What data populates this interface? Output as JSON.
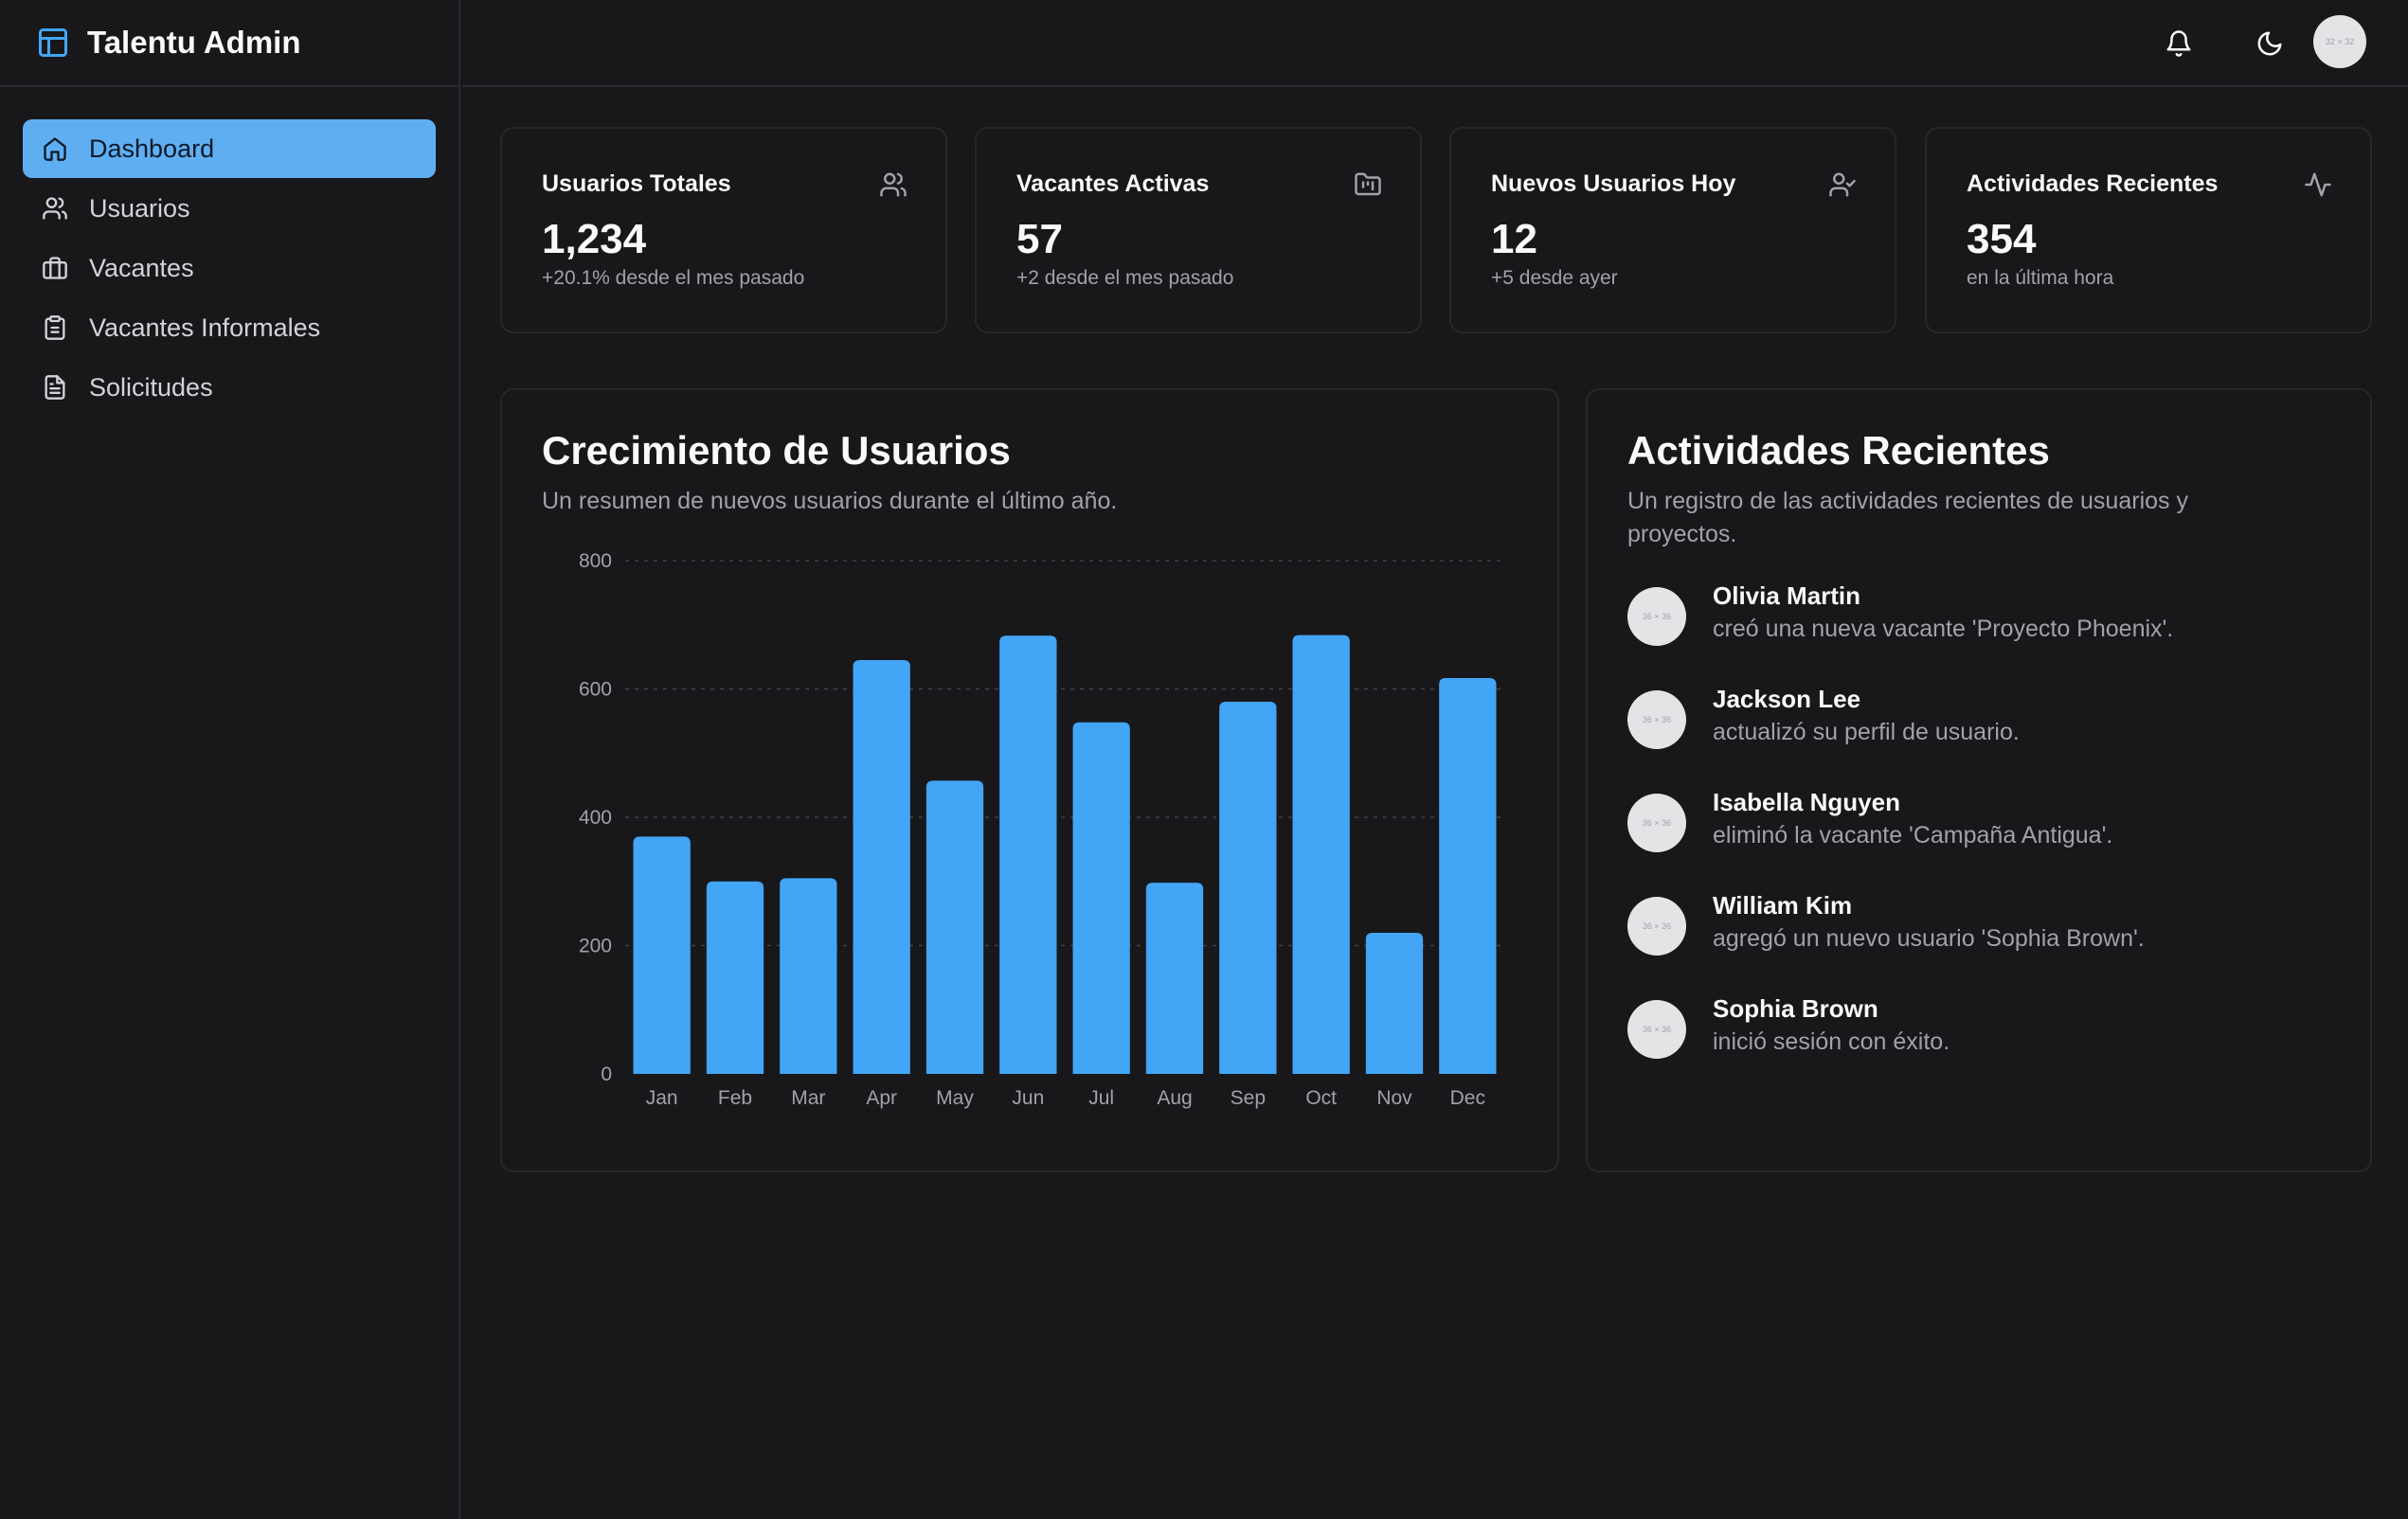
{
  "app": {
    "title": "Talentu Admin"
  },
  "sidebar": {
    "items": [
      {
        "label": "Dashboard",
        "icon": "home-icon",
        "active": true
      },
      {
        "label": "Usuarios",
        "icon": "users-icon"
      },
      {
        "label": "Vacantes",
        "icon": "briefcase-icon"
      },
      {
        "label": "Vacantes Informales",
        "icon": "clipboard-icon"
      },
      {
        "label": "Solicitudes",
        "icon": "file-text-icon"
      }
    ]
  },
  "header": {
    "avatar_placeholder": "32 × 32"
  },
  "stats": [
    {
      "title": "Usuarios Totales",
      "value": "1,234",
      "sub": "+20.1% desde el mes pasado",
      "icon": "users-icon"
    },
    {
      "title": "Vacantes Activas",
      "value": "57",
      "sub": "+2 desde el mes pasado",
      "icon": "folder-kanban-icon"
    },
    {
      "title": "Nuevos Usuarios Hoy",
      "value": "12",
      "sub": "+5 desde ayer",
      "icon": "user-check-icon"
    },
    {
      "title": "Actividades Recientes",
      "value": "354",
      "sub": "en la última hora",
      "icon": "activity-icon"
    }
  ],
  "growth": {
    "title": "Crecimiento de Usuarios",
    "description": "Un resumen de nuevos usuarios durante el último año."
  },
  "chart_data": {
    "type": "bar",
    "categories": [
      "Jan",
      "Feb",
      "Mar",
      "Apr",
      "May",
      "Jun",
      "Jul",
      "Aug",
      "Sep",
      "Oct",
      "Nov",
      "Dec"
    ],
    "values": [
      370,
      300,
      305,
      645,
      457,
      683,
      548,
      298,
      580,
      684,
      220,
      617
    ],
    "title": "",
    "xlabel": "",
    "ylabel": "",
    "ylim": [
      0,
      800
    ],
    "yticks": [
      0,
      200,
      400,
      600,
      800
    ],
    "grid": true,
    "color": "#42a5f5"
  },
  "activities": {
    "title": "Actividades Recientes",
    "description_line1": "Un registro de las actividades recientes de usuarios y",
    "description_line2": "proyectos.",
    "avatar_placeholder": "36 × 36",
    "items": [
      {
        "name": "Olivia Martin",
        "text": "creó una nueva vacante 'Proyecto Phoenix'."
      },
      {
        "name": "Jackson Lee",
        "text": "actualizó su perfil de usuario."
      },
      {
        "name": "Isabella Nguyen",
        "text": "eliminó la vacante 'Campaña Antigua'."
      },
      {
        "name": "William Kim",
        "text": "agregó un nuevo usuario 'Sophia Brown'."
      },
      {
        "name": "Sophia Brown",
        "text": "inició sesión con éxito."
      }
    ]
  },
  "colors": {
    "accent": "#60aef2",
    "bar": "#42a5f5",
    "background": "#18181b",
    "border": "#27272a",
    "muted": "#a1a1aa"
  }
}
